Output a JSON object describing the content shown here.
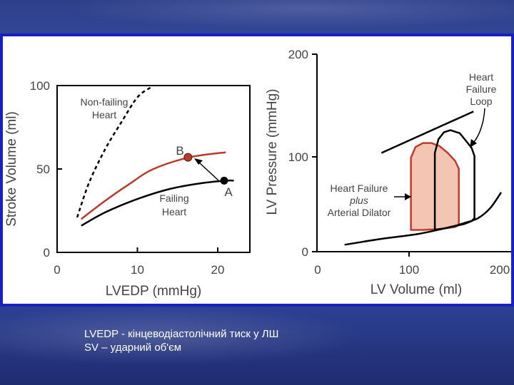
{
  "colors": {
    "panel_border": "#1a1fc4",
    "failing_curve": "#000000",
    "improved_curve": "#b83a2a",
    "dilator_fill": "#f2c6b2",
    "dilator_stroke": "#c23a2a"
  },
  "chart_data": [
    {
      "type": "line",
      "xlabel": "LVEDP (mmHg)",
      "ylabel": "Stroke Volume (ml)",
      "xlim": [
        0,
        24
      ],
      "ylim": [
        0,
        100
      ],
      "xticks": [
        0,
        10,
        20
      ],
      "yticks": [
        0,
        50,
        100
      ],
      "grid": false,
      "series": [
        {
          "name": "Non-failing Heart",
          "style": "dashed",
          "color": "#000000",
          "x": [
            2.5,
            4,
            6,
            8,
            10,
            11.7
          ],
          "y": [
            21,
            42,
            62,
            78,
            93,
            99
          ]
        },
        {
          "name": "",
          "style": "solid",
          "color": "#b83a2a",
          "x": [
            3,
            6,
            9,
            12,
            16.5,
            21
          ],
          "y": [
            20,
            31,
            41,
            50,
            57,
            60
          ]
        },
        {
          "name": "Failing Heart",
          "style": "solid",
          "color": "#000000",
          "x": [
            3,
            6,
            10,
            14,
            18,
            21,
            22
          ],
          "y": [
            16,
            24,
            32,
            38,
            41.5,
            43,
            43
          ]
        }
      ],
      "points": [
        {
          "label": "A",
          "x": 20.8,
          "y": 43,
          "color": "#000000"
        },
        {
          "label": "B",
          "x": 16.3,
          "y": 57,
          "color": "#b83a2a"
        }
      ],
      "annotations": [
        "Non-failing Heart",
        "Failing Heart"
      ]
    },
    {
      "type": "line",
      "xlabel": "LV Volume (ml)",
      "ylabel": "LV Pressure (mmHg)",
      "xlim": [
        0,
        200
      ],
      "ylim": [
        0,
        200
      ],
      "xticks": [
        0,
        100,
        200
      ],
      "yticks": [
        0,
        100,
        200
      ],
      "grid": false,
      "series": [
        {
          "name": "",
          "style": "solid",
          "color": "#000000",
          "x": [
            30,
            70,
            110,
            145,
            160,
            175,
            188,
            200
          ],
          "y": [
            7,
            13,
            18,
            25,
            29,
            34,
            44,
            60
          ]
        },
        {
          "name": "Heart Failure Loop",
          "style": "solid",
          "color": "#000000",
          "x": [
            128,
            128,
            132,
            138,
            145,
            155,
            162,
            168,
            171,
            171,
            168,
            160,
            140,
            128
          ],
          "y": [
            22,
            100,
            114,
            121,
            123,
            120,
            112,
            105,
            97,
            34,
            31,
            28,
            24,
            22
          ]
        },
        {
          "name": "Heart Failure plus Arterial Dilator",
          "style": "filled",
          "color": "#c23a2a",
          "fill": "#f2c6b2",
          "x": [
            102,
            102,
            107,
            115,
            124,
            133,
            142,
            150,
            154,
            154,
            150,
            135,
            115,
            102
          ],
          "y": [
            22,
            95,
            106,
            110,
            110,
            107,
            100,
            92,
            84,
            27,
            25,
            23,
            22,
            22
          ]
        }
      ],
      "segments": [
        {
          "from": [
            70,
            100
          ],
          "to": [
            170,
            142
          ]
        },
        {
          "from": [
            128,
            22
          ],
          "to": [
            128,
            100
          ]
        }
      ],
      "annotations": [
        "Heart Failure Loop",
        "Heart Failure plus Arterial Dilator"
      ]
    }
  ],
  "labels": {
    "left_ylabel": "Stroke Volume (ml)",
    "left_xlabel": "LVEDP (mmHg)",
    "nonfailing_line1": "Non-failing",
    "nonfailing_line2": "Heart",
    "failing_line1": "Failing",
    "failing_line2": "Heart",
    "point_a": "A",
    "point_b": "B",
    "left_y0": "0",
    "left_y50": "50",
    "left_y100": "100",
    "left_x0": "0",
    "left_x10": "10",
    "left_x20": "20",
    "right_ylabel": "LV Pressure (mmHg)",
    "right_xlabel": "LV Volume (ml)",
    "hf_loop_line1": "Heart",
    "hf_loop_line2": "Failure",
    "hf_loop_line3": "Loop",
    "dilator_line1": "Heart Failure",
    "dilator_line2": "plus",
    "dilator_line3": "Arterial Dilator",
    "right_y0": "0",
    "right_y100": "100",
    "right_y200": "200",
    "right_x0": "0",
    "right_x100": "100",
    "right_x200": "200"
  },
  "caption": {
    "line1": "LVEDP - кінцеводіастолічний тиск у ЛШ",
    "line2": "SV – ударний об'єм"
  }
}
